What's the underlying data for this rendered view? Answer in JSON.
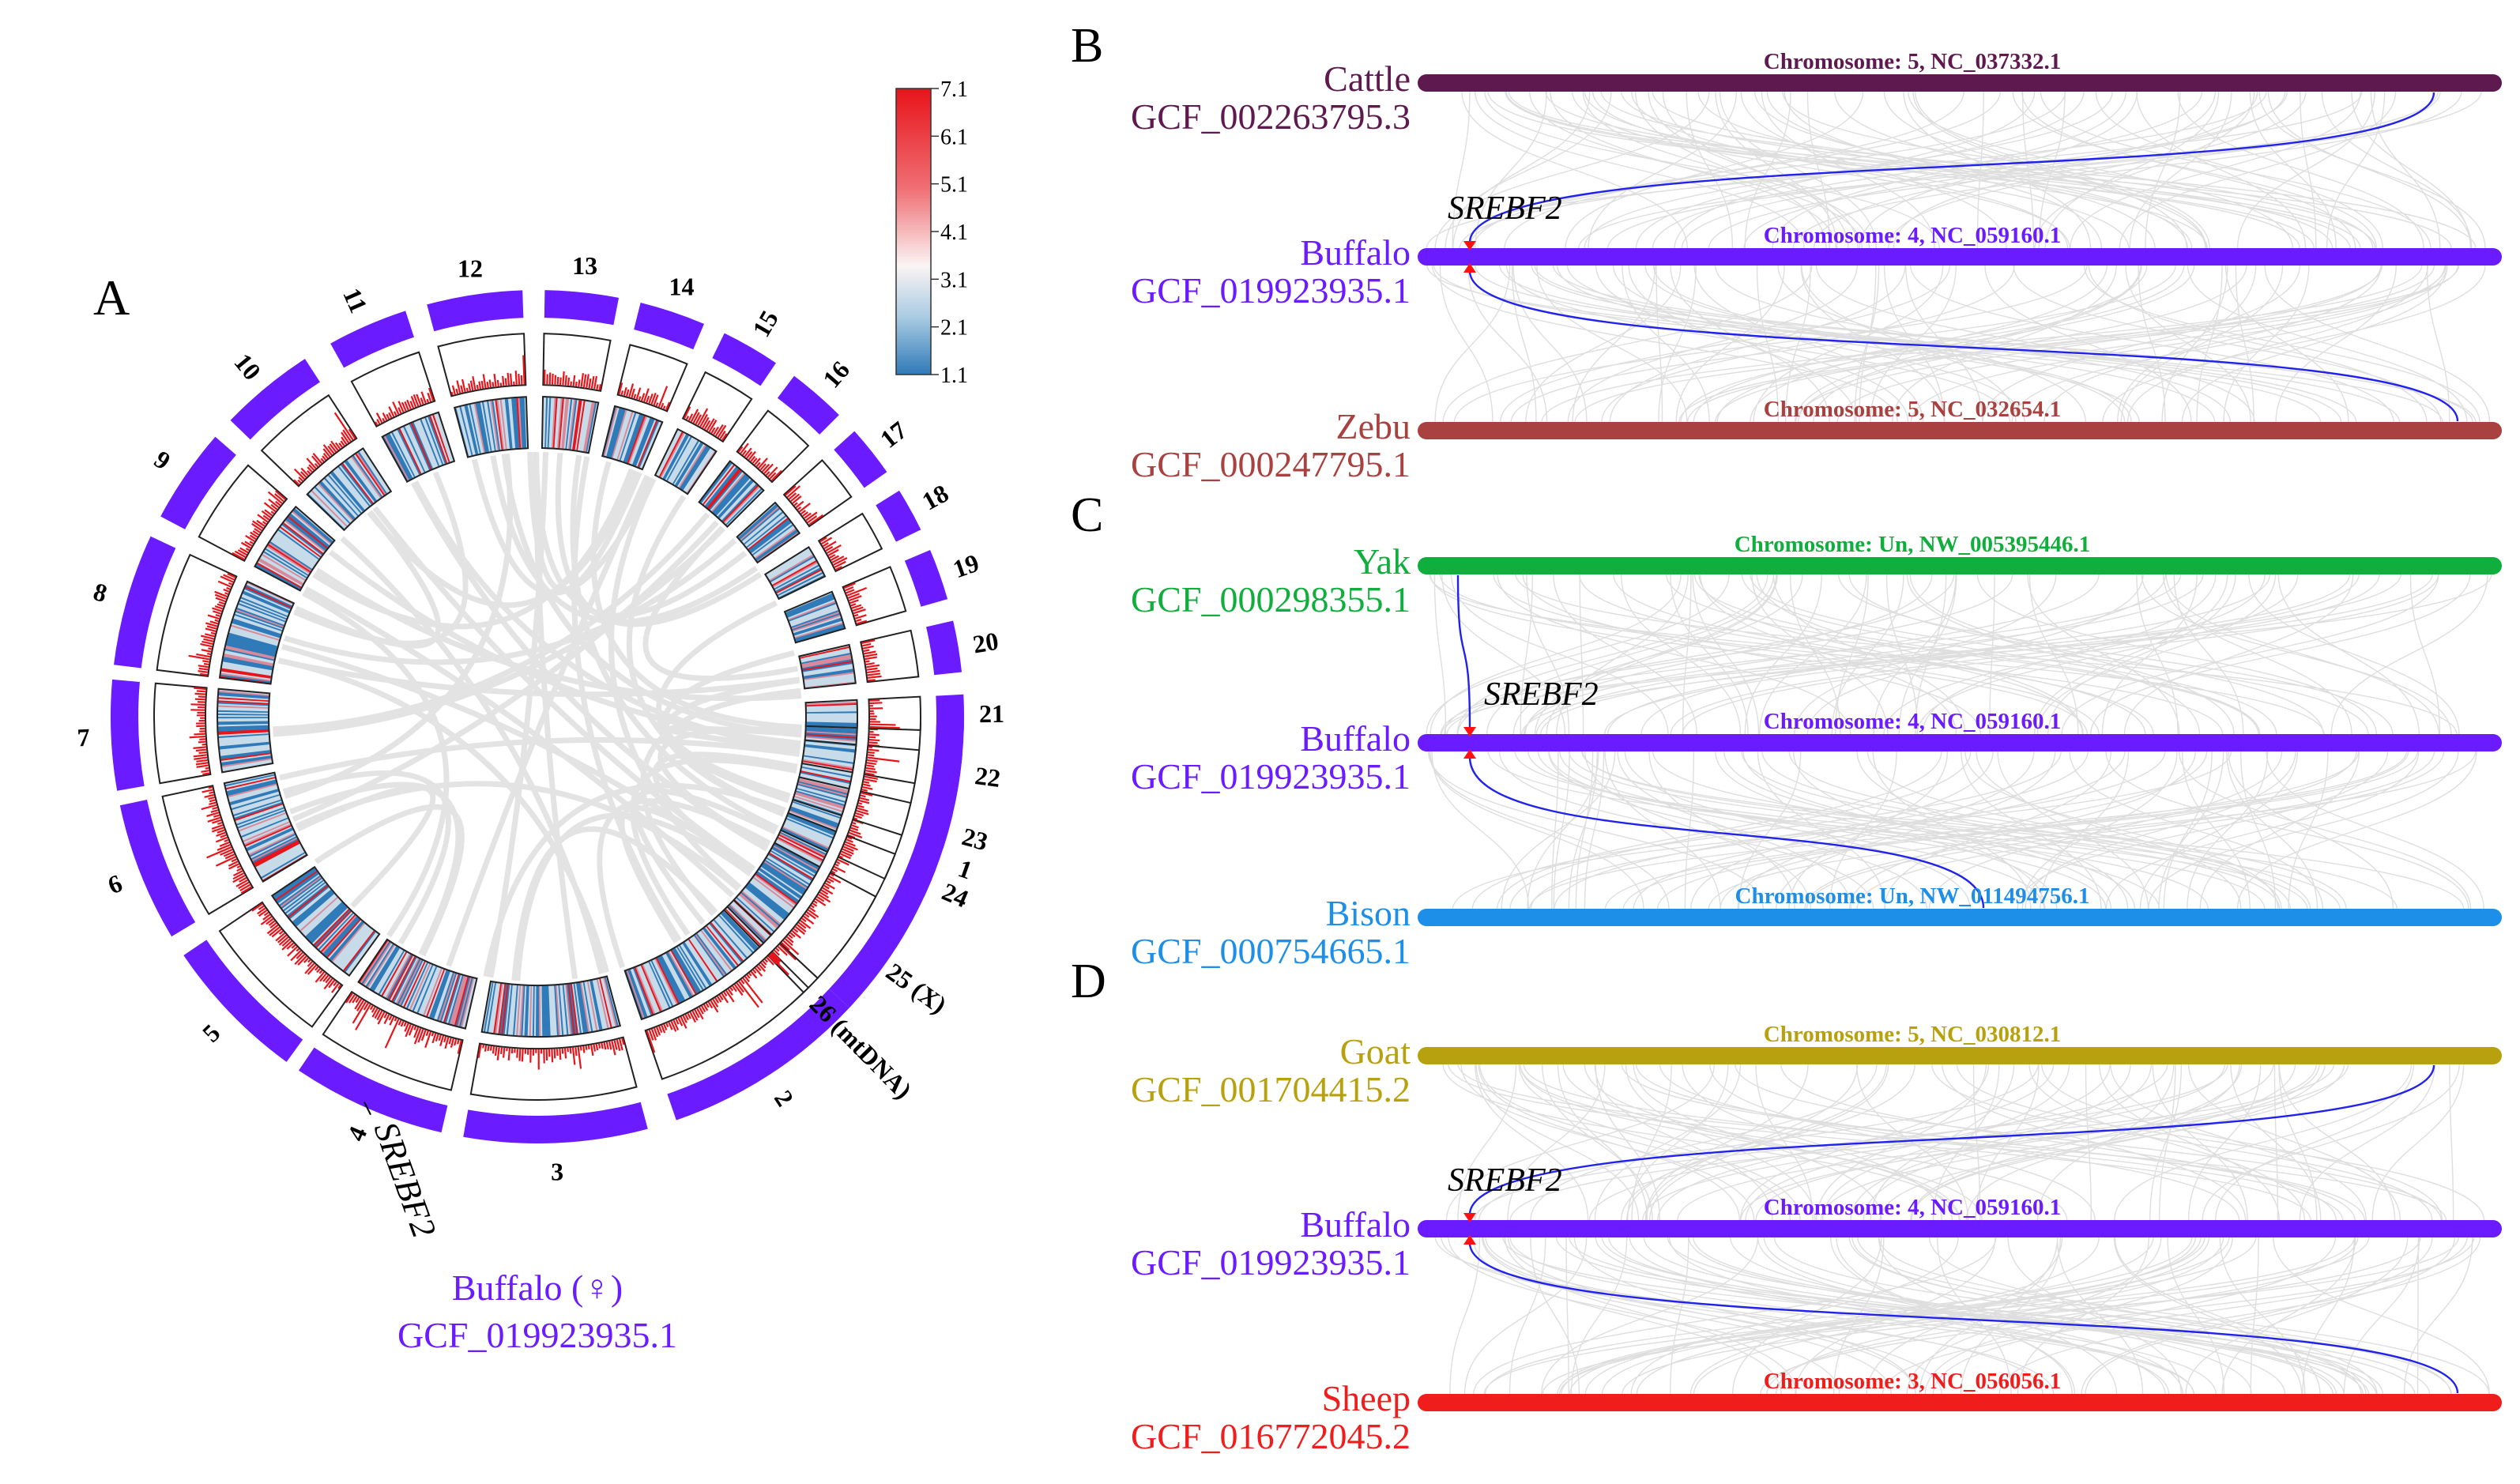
{
  "panel_a": {
    "letter": "A",
    "chromosomes": [
      "1",
      "2",
      "3",
      "4",
      "5",
      "6",
      "7",
      "8",
      "9",
      "10",
      "11",
      "12",
      "13",
      "14",
      "15",
      "16",
      "17",
      "18",
      "19",
      "20",
      "21",
      "22",
      "23",
      "24",
      "25 (X)",
      "26 (mtDNA)"
    ],
    "gene_label": "SREBF2",
    "genome_name": "Buffalo (♀)",
    "genome_accession": "GCF_019923935.1",
    "colorbar_ticks": [
      "7.1",
      "6.1",
      "5.1",
      "4.1",
      "3.1",
      "2.1",
      "1.1"
    ],
    "colors": {
      "chromosome": "#6a1bff",
      "line_track": "#e8141a",
      "heat_low": "#2f7ab8",
      "heat_high": "#e8141a",
      "link": "#e3e3e3"
    }
  },
  "panels": [
    {
      "letter": "B",
      "gene_label": "SREBF2",
      "tracks": [
        {
          "species": "Cattle",
          "accession": "GCF_002263795.3",
          "chromosome": "Chromosome: 5, NC_037332.1",
          "color": "#5e1a4f"
        },
        {
          "species": "Buffalo",
          "accession": "GCF_019923935.1",
          "chromosome": "Chromosome: 4, NC_059160.1",
          "color": "#6a1bff"
        },
        {
          "species": "Zebu",
          "accession": "GCF_000247795.1",
          "chromosome": "Chromosome: 5, NC_032654.1",
          "color": "#a8413f"
        }
      ]
    },
    {
      "letter": "C",
      "gene_label": "SREBF2",
      "tracks": [
        {
          "species": "Yak",
          "accession": "GCF_000298355.1",
          "chromosome": "Chromosome: Un, NW_005395446.1",
          "color": "#0fae3d"
        },
        {
          "species": "Buffalo",
          "accession": "GCF_019923935.1",
          "chromosome": "Chromosome: 4, NC_059160.1",
          "color": "#6a1bff"
        },
        {
          "species": "Bison",
          "accession": "GCF_000754665.1",
          "chromosome": "Chromosome: Un, NW_011494756.1",
          "color": "#1e8fe8"
        }
      ]
    },
    {
      "letter": "D",
      "gene_label": "SREBF2",
      "tracks": [
        {
          "species": "Goat",
          "accession": "GCF_001704415.2",
          "chromosome": "Chromosome: 5, NC_030812.1",
          "color": "#b8a10e"
        },
        {
          "species": "Buffalo",
          "accession": "GCF_019923935.1",
          "chromosome": "Chromosome: 4, NC_059160.1",
          "color": "#6a1bff"
        },
        {
          "species": "Sheep",
          "accession": "GCF_016772045.2",
          "chromosome": "Chromosome: 3, NC_056056.1",
          "color": "#f01d1d"
        }
      ]
    }
  ]
}
